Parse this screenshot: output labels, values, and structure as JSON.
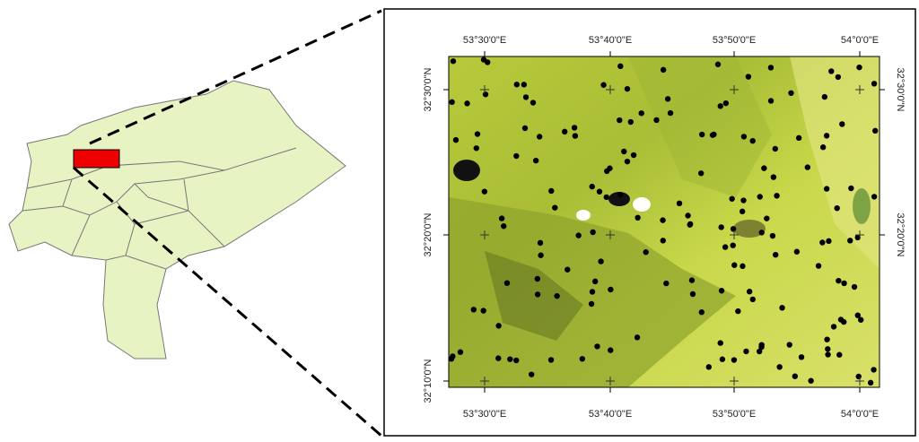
{
  "map": {
    "top_labels": [
      "53°30'0\"E",
      "53°40'0\"E",
      "53°50'0\"E",
      "54°0'0\"E"
    ],
    "bottom_labels": [
      "53°30'0\"E",
      "53°40'0\"E",
      "53°50'0\"E",
      "54°0'0\"E"
    ],
    "left_labels": [
      "32°30'0\"N",
      "32°20'0\"N",
      "32°10'0\"N"
    ],
    "right_labels": [
      "32°30'0\"N",
      "32°20'0\"N"
    ]
  }
}
